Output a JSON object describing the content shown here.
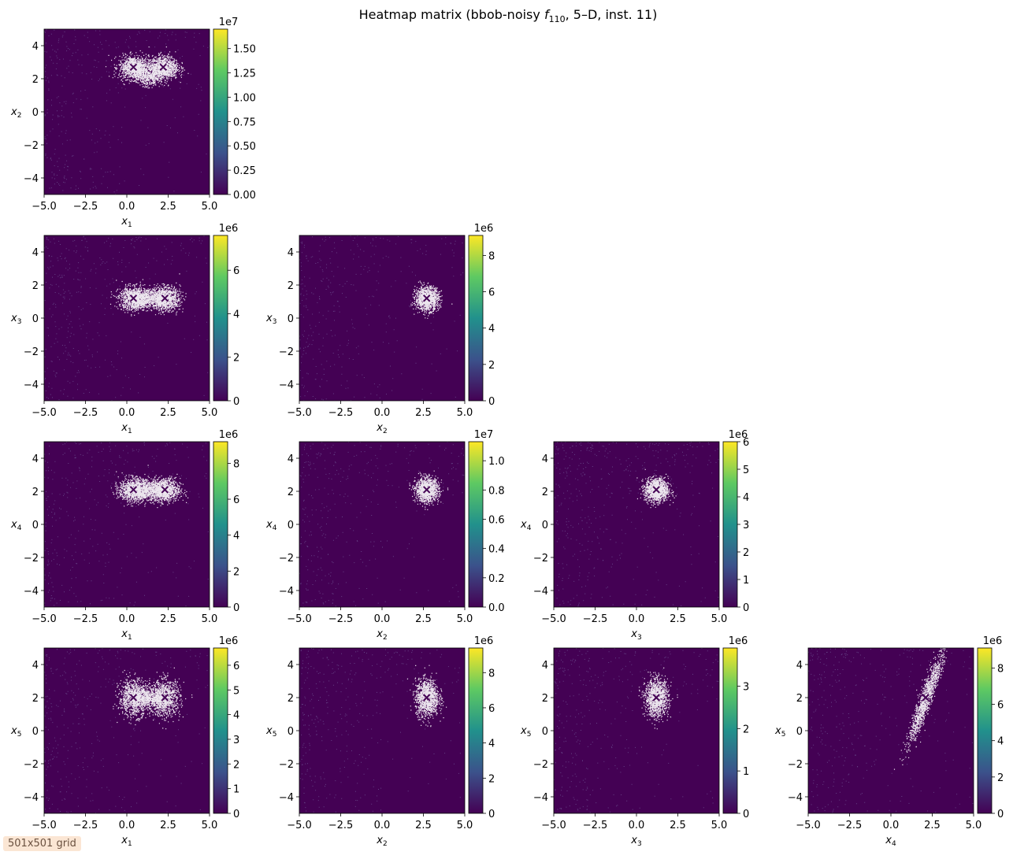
{
  "title": "Heatmap matrix (bbob-noisy f110, 5–D, inst. 11)",
  "title_parts": {
    "before": "Heatmap matrix (bbob-noisy ",
    "f": "f",
    "sub": "110",
    "after": ", 5–D, inst. 11)"
  },
  "grid_note": "501x501 grid",
  "colors": {
    "cmap": [
      "#440154",
      "#3b528b",
      "#21918c",
      "#5ec962",
      "#fde725"
    ],
    "background": "#440154",
    "highlight": "#ffffff"
  },
  "chart_data": [
    {
      "type": "heatmap",
      "xvar": "1",
      "yvar": "2",
      "xlabel": "x1",
      "ylabel": "x2",
      "xlim": [
        -5,
        5
      ],
      "ylim": [
        -5,
        5
      ],
      "xticks": [
        "−5.0",
        "−2.5",
        "0.0",
        "2.5",
        "5.0"
      ],
      "yticks": [
        "−4",
        "−2",
        "0",
        "2",
        "4"
      ],
      "cbar_offset": "1e7",
      "cbar_ticks": [
        "0.00",
        "0.25",
        "0.50",
        "0.75",
        "1.00",
        "1.25",
        "1.50"
      ],
      "cbar_values": [
        0,
        0.25,
        0.5,
        0.75,
        1.0,
        1.25,
        1.5
      ],
      "cbar_max": 1.7,
      "optima": [
        [
          0.4,
          2.7
        ],
        [
          2.2,
          2.7
        ]
      ]
    },
    {
      "type": "heatmap",
      "xvar": "1",
      "yvar": "3",
      "xlabel": "x1",
      "ylabel": "x3",
      "xlim": [
        -5,
        5
      ],
      "ylim": [
        -5,
        5
      ],
      "xticks": [
        "−5.0",
        "−2.5",
        "0.0",
        "2.5",
        "5.0"
      ],
      "yticks": [
        "−4",
        "−2",
        "0",
        "2",
        "4"
      ],
      "cbar_offset": "1e6",
      "cbar_ticks": [
        "0",
        "2",
        "4",
        "6"
      ],
      "cbar_values": [
        0,
        2,
        4,
        6
      ],
      "cbar_max": 7.6,
      "optima": [
        [
          0.4,
          1.2
        ],
        [
          2.3,
          1.2
        ]
      ]
    },
    {
      "type": "heatmap",
      "xvar": "2",
      "yvar": "3",
      "xlabel": "x2",
      "ylabel": "x3",
      "xlim": [
        -5,
        5
      ],
      "ylim": [
        -5,
        5
      ],
      "xticks": [
        "−5.0",
        "−2.5",
        "0.0",
        "2.5",
        "5.0"
      ],
      "yticks": [
        "−4",
        "−2",
        "0",
        "2",
        "4"
      ],
      "cbar_offset": "1e6",
      "cbar_ticks": [
        "0",
        "2",
        "4",
        "6",
        "8"
      ],
      "cbar_values": [
        0,
        2,
        4,
        6,
        8
      ],
      "cbar_max": 9.1,
      "optima": [
        [
          2.7,
          1.2
        ]
      ]
    },
    {
      "type": "heatmap",
      "xvar": "1",
      "yvar": "4",
      "xlabel": "x1",
      "ylabel": "x4",
      "xlim": [
        -5,
        5
      ],
      "ylim": [
        -5,
        5
      ],
      "xticks": [
        "−5.0",
        "−2.5",
        "0.0",
        "2.5",
        "5.0"
      ],
      "yticks": [
        "−4",
        "−2",
        "0",
        "2",
        "4"
      ],
      "cbar_offset": "1e6",
      "cbar_ticks": [
        "0",
        "2",
        "4",
        "6",
        "8"
      ],
      "cbar_values": [
        0,
        2,
        4,
        6,
        8
      ],
      "cbar_max": 9.2,
      "optima": [
        [
          0.4,
          2.1
        ],
        [
          2.3,
          2.1
        ]
      ]
    },
    {
      "type": "heatmap",
      "xvar": "2",
      "yvar": "4",
      "xlabel": "x2",
      "ylabel": "x4",
      "xlim": [
        -5,
        5
      ],
      "ylim": [
        -5,
        5
      ],
      "xticks": [
        "−5.0",
        "−2.5",
        "0.0",
        "2.5",
        "5.0"
      ],
      "yticks": [
        "−4",
        "−2",
        "0",
        "2",
        "4"
      ],
      "cbar_offset": "1e7",
      "cbar_ticks": [
        "0.0",
        "0.2",
        "0.4",
        "0.6",
        "0.8",
        "1.0"
      ],
      "cbar_values": [
        0,
        0.2,
        0.4,
        0.6,
        0.8,
        1.0
      ],
      "cbar_max": 1.13,
      "optima": [
        [
          2.7,
          2.1
        ]
      ]
    },
    {
      "type": "heatmap",
      "xvar": "3",
      "yvar": "4",
      "xlabel": "x3",
      "ylabel": "x4",
      "xlim": [
        -5,
        5
      ],
      "ylim": [
        -5,
        5
      ],
      "xticks": [
        "−5.0",
        "−2.5",
        "0.0",
        "2.5",
        "5.0"
      ],
      "yticks": [
        "−4",
        "−2",
        "0",
        "2",
        "4"
      ],
      "cbar_offset": "1e6",
      "cbar_ticks": [
        "0",
        "1",
        "2",
        "3",
        "4",
        "5",
        "6"
      ],
      "cbar_values": [
        0,
        1,
        2,
        3,
        4,
        5,
        6
      ],
      "cbar_max": 6.0,
      "optima": [
        [
          1.2,
          2.1
        ]
      ]
    },
    {
      "type": "heatmap",
      "xvar": "1",
      "yvar": "5",
      "xlabel": "x1",
      "ylabel": "x5",
      "xlim": [
        -5,
        5
      ],
      "ylim": [
        -5,
        5
      ],
      "xticks": [
        "−5.0",
        "−2.5",
        "0.0",
        "2.5",
        "5.0"
      ],
      "yticks": [
        "−4",
        "−2",
        "0",
        "2",
        "4"
      ],
      "cbar_offset": "1e6",
      "cbar_ticks": [
        "0",
        "1",
        "2",
        "3",
        "4",
        "5",
        "6"
      ],
      "cbar_values": [
        0,
        1,
        2,
        3,
        4,
        5,
        6
      ],
      "cbar_max": 6.7,
      "optima": [
        [
          0.4,
          2.0
        ],
        [
          2.3,
          2.0
        ]
      ]
    },
    {
      "type": "heatmap",
      "xvar": "2",
      "yvar": "5",
      "xlabel": "x2",
      "ylabel": "x5",
      "xlim": [
        -5,
        5
      ],
      "ylim": [
        -5,
        5
      ],
      "xticks": [
        "−5.0",
        "−2.5",
        "0.0",
        "2.5",
        "5.0"
      ],
      "yticks": [
        "−4",
        "−2",
        "0",
        "2",
        "4"
      ],
      "cbar_offset": "1e6",
      "cbar_ticks": [
        "0",
        "2",
        "4",
        "6",
        "8"
      ],
      "cbar_values": [
        0,
        2,
        4,
        6,
        8
      ],
      "cbar_max": 9.4,
      "optima": [
        [
          2.7,
          2.0
        ]
      ]
    },
    {
      "type": "heatmap",
      "xvar": "3",
      "yvar": "5",
      "xlabel": "x3",
      "ylabel": "x5",
      "xlim": [
        -5,
        5
      ],
      "ylim": [
        -5,
        5
      ],
      "xticks": [
        "−5.0",
        "−2.5",
        "0.0",
        "2.5",
        "5.0"
      ],
      "yticks": [
        "−4",
        "−2",
        "0",
        "2",
        "4"
      ],
      "cbar_offset": "1e6",
      "cbar_ticks": [
        "0",
        "1",
        "2",
        "3"
      ],
      "cbar_values": [
        0,
        1,
        2,
        3
      ],
      "cbar_max": 3.9,
      "optima": [
        [
          1.2,
          2.0
        ]
      ]
    },
    {
      "type": "heatmap",
      "xvar": "4",
      "yvar": "5",
      "xlabel": "x4",
      "ylabel": "x5",
      "xlim": [
        -5,
        5
      ],
      "ylim": [
        -5,
        5
      ],
      "xticks": [
        "−5.0",
        "−2.5",
        "0.0",
        "2.5",
        "5.0"
      ],
      "yticks": [
        "−4",
        "−2",
        "0",
        "2",
        "4"
      ],
      "cbar_offset": "1e6",
      "cbar_ticks": [
        "0",
        "2",
        "4",
        "6",
        "8"
      ],
      "cbar_values": [
        0,
        2,
        4,
        6,
        8
      ],
      "cbar_max": 9.1,
      "optima": [
        [
          2.1,
          2.0
        ]
      ]
    }
  ]
}
